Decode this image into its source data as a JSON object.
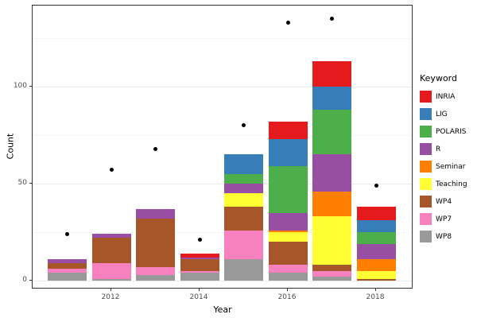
{
  "chart_data": {
    "type": "bar",
    "subtype": "stacked-with-points",
    "title": "",
    "xlabel": "Year",
    "ylabel": "Count",
    "legend_title": "Keyword",
    "legend_position": "right",
    "grid": true,
    "categories": [
      2011,
      2012,
      2013,
      2014,
      2015,
      2016,
      2017,
      2018
    ],
    "x_tick_labels": [
      "2012",
      "2014",
      "2016",
      "2018"
    ],
    "y_tick_labels": [
      "0",
      "50",
      "100"
    ],
    "y_tick_values": [
      0,
      50,
      100
    ],
    "y_minor_values": [
      25,
      75,
      125
    ],
    "ylim": [
      0,
      142
    ],
    "series": [
      {
        "name": "INRIA",
        "color": "#e41a1c",
        "values": [
          0,
          0,
          0,
          2,
          0,
          9,
          13,
          7
        ]
      },
      {
        "name": "LIG",
        "color": "#377eb8",
        "values": [
          0,
          0,
          0,
          0,
          10,
          14,
          12,
          6
        ]
      },
      {
        "name": "POLARIS",
        "color": "#4daf4a",
        "values": [
          0,
          0,
          0,
          0,
          5,
          24,
          23,
          6
        ]
      },
      {
        "name": "R",
        "color": "#984ea3",
        "values": [
          2,
          2,
          5,
          1,
          5,
          9,
          19,
          8
        ]
      },
      {
        "name": "Seminar",
        "color": "#ff7f00",
        "values": [
          0,
          0,
          0,
          0,
          0,
          1,
          13,
          6
        ]
      },
      {
        "name": "Teaching",
        "color": "#ffff33",
        "values": [
          0,
          0,
          0,
          0,
          7,
          5,
          25,
          4
        ]
      },
      {
        "name": "WP4",
        "color": "#a65628",
        "values": [
          3,
          13,
          25,
          6,
          12,
          12,
          3,
          1
        ]
      },
      {
        "name": "WP7",
        "color": "#f781bf",
        "values": [
          2,
          8,
          4,
          1,
          15,
          4,
          3,
          0
        ]
      },
      {
        "name": "WP8",
        "color": "#999999",
        "values": [
          4,
          1,
          3,
          4,
          11,
          4,
          2,
          0
        ]
      }
    ],
    "stack_order_bottom_to_top": [
      "WP8",
      "WP7",
      "WP4",
      "Teaching",
      "Seminar",
      "R",
      "POLARIS",
      "LIG",
      "INRIA"
    ],
    "bar_totals": [
      11,
      24,
      37,
      14,
      65,
      82,
      113,
      38
    ],
    "points": {
      "name": "points",
      "color": "#000000",
      "values": [
        24,
        57,
        68,
        21,
        80,
        133,
        135,
        49
      ]
    },
    "colors": {
      "point": "#000000",
      "panel_border": "#333333",
      "grid_major": "#ebebeb",
      "grid_minor": "#f6f6f6",
      "tick_label": "#4d4d4d",
      "background": "#ffffff"
    }
  }
}
